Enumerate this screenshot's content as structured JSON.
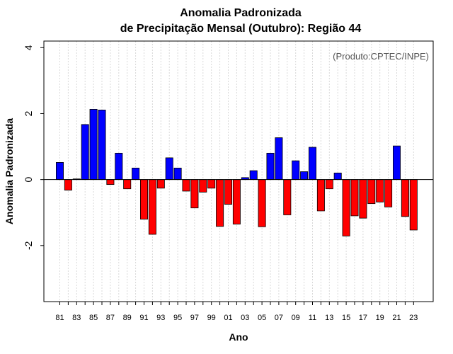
{
  "chart_data": {
    "type": "bar",
    "title": "Anomalia Padronizada",
    "subtitle": "de Precipitação Mensal (Outubro): Região 44",
    "credit": "(Produto:CPTEC/INPE)",
    "xlabel": "Ano",
    "ylabel": "Anomalia Padronizada",
    "ylim": [
      -3.7,
      4.2
    ],
    "yticks": [
      -2,
      0,
      2,
      4
    ],
    "xtick_labels": [
      "81",
      "83",
      "85",
      "87",
      "89",
      "91",
      "93",
      "95",
      "97",
      "99",
      "01",
      "03",
      "05",
      "07",
      "09",
      "11",
      "13",
      "15",
      "17",
      "19",
      "21",
      "23"
    ],
    "categories": [
      "1981",
      "1982",
      "1983",
      "1984",
      "1985",
      "1986",
      "1987",
      "1988",
      "1989",
      "1990",
      "1991",
      "1992",
      "1993",
      "1994",
      "1995",
      "1996",
      "1997",
      "1998",
      "1999",
      "2000",
      "2001",
      "2002",
      "2003",
      "2004",
      "2005",
      "2006",
      "2007",
      "2008",
      "2009",
      "2010",
      "2011",
      "2012",
      "2013",
      "2014",
      "2015",
      "2016",
      "2017",
      "2018",
      "2019",
      "2020",
      "2021",
      "2022",
      "2023"
    ],
    "values": [
      0.52,
      -0.32,
      0.02,
      1.67,
      2.13,
      2.11,
      -0.15,
      0.8,
      -0.28,
      0.35,
      -1.2,
      -1.66,
      -0.26,
      0.66,
      0.35,
      -0.35,
      -0.86,
      -0.38,
      -0.26,
      -1.42,
      -0.75,
      -1.35,
      0.06,
      0.27,
      -1.43,
      0.8,
      1.27,
      -1.07,
      0.57,
      0.24,
      0.98,
      -0.95,
      -0.28,
      0.2,
      -1.71,
      -1.1,
      -1.17,
      -0.73,
      -0.68,
      -0.83,
      1.02,
      -1.12,
      -1.53
    ],
    "colors": {
      "positive": "#0000ff",
      "negative": "#ff0000",
      "grid": "#d9d9d9"
    },
    "grid": true
  }
}
